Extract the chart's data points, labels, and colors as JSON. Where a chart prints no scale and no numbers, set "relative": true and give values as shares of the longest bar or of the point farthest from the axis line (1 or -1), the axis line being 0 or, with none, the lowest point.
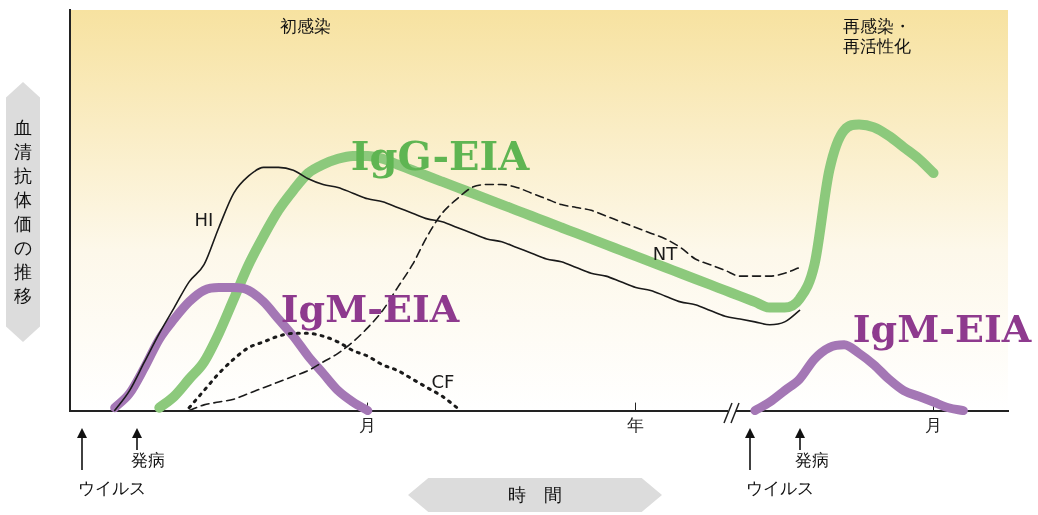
{
  "chart_data": {
    "type": "line",
    "relative": true,
    "xlabel": "時　間",
    "ylabel": "血清抗体価の推移",
    "categories": [
      null,
      null,
      null,
      null,
      null,
      null,
      null,
      null,
      null,
      null,
      null,
      null,
      null,
      null,
      null,
      null,
      null,
      null,
      null,
      null,
      "月",
      null,
      null,
      null,
      null,
      null,
      null,
      null,
      null,
      null,
      null,
      null,
      null,
      null,
      null,
      null,
      null,
      null,
      "年",
      null,
      null,
      null,
      null,
      null,
      null,
      null,
      null,
      null,
      null,
      null,
      null,
      null,
      null,
      null,
      null,
      null,
      null,
      null,
      "月",
      null,
      null,
      null,
      null,
      null
    ],
    "legend": false,
    "series": [
      {
        "name": "HI",
        "color": "#1a1a1a",
        "line_style": "solid",
        "values": [
          null,
          null,
          null,
          0,
          0.07,
          0.17,
          0.27,
          0.36,
          0.45,
          0.51,
          0.64,
          0.76,
          0.82,
          0.85,
          0.85,
          0.84,
          0.81,
          0.79,
          0.78,
          0.76,
          0.74,
          0.73,
          0.71,
          0.69,
          0.67,
          0.66,
          0.64,
          0.62,
          0.6,
          0.59,
          0.57,
          0.55,
          0.53,
          0.52,
          0.5,
          0.48,
          0.47,
          0.45,
          0.43,
          0.42,
          0.4,
          0.38,
          0.37,
          0.35,
          0.33,
          0.32,
          0.31,
          0.3,
          0.31,
          0.35,
          null,
          null,
          null,
          null,
          null,
          null,
          null,
          null,
          null,
          null,
          null,
          null,
          null,
          null
        ]
      },
      {
        "name": "NT",
        "color": "#1a1a1a",
        "line_style": "dashed",
        "values": [
          null,
          null,
          null,
          null,
          null,
          null,
          null,
          null,
          0,
          0.02,
          0.03,
          0.04,
          0.06,
          0.08,
          0.1,
          0.12,
          0.14,
          0.17,
          0.2,
          0.24,
          0.29,
          0.35,
          0.43,
          0.51,
          0.61,
          0.69,
          0.74,
          0.78,
          0.79,
          0.79,
          0.78,
          0.76,
          0.74,
          0.72,
          0.71,
          0.7,
          0.68,
          0.66,
          0.64,
          0.62,
          0.6,
          0.57,
          0.53,
          0.51,
          0.49,
          0.47,
          0.47,
          0.47,
          0.48,
          0.5,
          null,
          null,
          null,
          null,
          null,
          null,
          null,
          null,
          null,
          null,
          null,
          null,
          null,
          null
        ]
      },
      {
        "name": "CF",
        "color": "#1a1a1a",
        "line_style": "dotted",
        "values": [
          null,
          null,
          null,
          null,
          null,
          null,
          null,
          null,
          0.01,
          0.07,
          0.13,
          0.18,
          0.22,
          0.24,
          0.26,
          0.27,
          0.27,
          0.26,
          0.24,
          0.21,
          0.19,
          0.16,
          0.14,
          0.11,
          0.08,
          0.05,
          0.01,
          null,
          null,
          null,
          null,
          null,
          null,
          null,
          null,
          null,
          null,
          null,
          null,
          null,
          null,
          null,
          null,
          null,
          null,
          null,
          null,
          null,
          null,
          null,
          null,
          null,
          null,
          null,
          null,
          null,
          null,
          null,
          null,
          null,
          null,
          null,
          null,
          null
        ]
      },
      {
        "name": "IgM-EIA",
        "color": "#a477b5",
        "line_style": "solid",
        "values": [
          null,
          null,
          null,
          0.01,
          0.06,
          0.15,
          0.25,
          0.32,
          0.38,
          0.42,
          0.43,
          0.43,
          0.42,
          0.38,
          0.32,
          0.26,
          0.19,
          0.13,
          0.07,
          0.03,
          0,
          null,
          null,
          null,
          null,
          null,
          null,
          null,
          null,
          null,
          null,
          null,
          null,
          null,
          null,
          null,
          null,
          null,
          null,
          null,
          null,
          null,
          null,
          null,
          null,
          null,
          null,
          null,
          null,
          null,
          null,
          null,
          null,
          null,
          null,
          null,
          null,
          null,
          null,
          null,
          null,
          null,
          null,
          null
        ]
      },
      {
        "name": "IgM-EIA",
        "color": "#a477b5",
        "line_style": "solid",
        "values": [
          null,
          null,
          null,
          null,
          null,
          null,
          null,
          null,
          null,
          null,
          null,
          null,
          null,
          null,
          null,
          null,
          null,
          null,
          null,
          null,
          null,
          null,
          null,
          null,
          null,
          null,
          null,
          null,
          null,
          null,
          null,
          null,
          null,
          null,
          null,
          null,
          null,
          null,
          null,
          null,
          null,
          null,
          null,
          null,
          null,
          null,
          0,
          0.03,
          0.07,
          0.11,
          0.18,
          0.22,
          0.23,
          0.2,
          0.16,
          0.11,
          0.07,
          0.05,
          0.03,
          0.01,
          0,
          null,
          null,
          null
        ]
      },
      {
        "name": "IgG-EIA",
        "color": "#8cc97c",
        "line_style": "solid",
        "values": [
          null,
          null,
          null,
          null,
          null,
          null,
          0.01,
          0.05,
          0.11,
          0.17,
          0.27,
          0.39,
          0.51,
          0.61,
          0.7,
          0.77,
          0.83,
          0.86,
          0.88,
          0.89,
          0.89,
          0.88,
          0.86,
          0.84,
          0.82,
          0.8,
          0.78,
          0.76,
          0.74,
          0.72,
          0.7,
          0.68,
          0.66,
          0.64,
          0.62,
          0.6,
          0.58,
          0.56,
          0.54,
          0.52,
          0.5,
          0.48,
          0.46,
          0.44,
          0.42,
          0.4,
          0.38,
          0.36,
          0.36,
          0.39,
          0.51,
          0.84,
          0.98,
          1.0,
          0.99,
          0.96,
          0.92,
          0.88,
          0.83,
          null,
          null,
          null,
          null,
          null
        ]
      }
    ],
    "annotations": [
      "初感染",
      "再感染・再活性化",
      "ウイルス",
      "発病",
      "ウイルス",
      "発病"
    ]
  }
}
